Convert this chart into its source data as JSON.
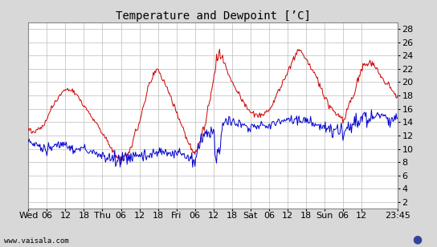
{
  "title": "Temperature and Dewpoint [’C]",
  "ylabel_right_ticks": [
    2,
    4,
    6,
    8,
    10,
    12,
    14,
    16,
    18,
    20,
    22,
    24,
    26,
    28
  ],
  "ylim": [
    1,
    29
  ],
  "x_tick_labels": [
    "Wed",
    "06",
    "12",
    "18",
    "Thu",
    "06",
    "12",
    "18",
    "Fri",
    "06",
    "12",
    "18",
    "Sat",
    "06",
    "12",
    "18",
    "Sun",
    "06",
    "12",
    "23:45"
  ],
  "x_tick_positions": [
    0,
    6,
    12,
    18,
    24,
    30,
    36,
    42,
    48,
    54,
    60,
    66,
    72,
    78,
    84,
    90,
    96,
    102,
    108,
    119.75
  ],
  "xlim": [
    0,
    119.75
  ],
  "background_color": "#d8d8d8",
  "plot_bg_color": "#ffffff",
  "grid_color": "#bbbbbb",
  "temp_color": "#cc0000",
  "dewpoint_color": "#0000cc",
  "line_width": 0.7,
  "watermark": "www.vaisala.com",
  "title_fontsize": 10,
  "tick_fontsize": 8
}
